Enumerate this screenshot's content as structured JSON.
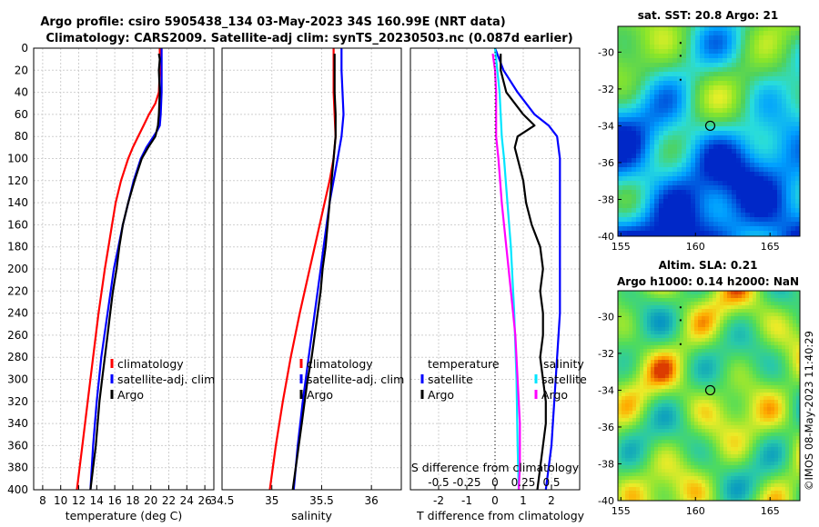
{
  "title_line1": "Argo profile: csiro 5905438_134 03-May-2023 34S 160.99E (NRT data)",
  "title_line2": "Climatology: CARS2009. Satellite-adj clim: synTS_20230503.nc (0.087d earlier)",
  "watermark": "©IMOS 08-May-2023 11:40:29",
  "colors": {
    "climatology": "#ff0000",
    "satellite": "#0000ff",
    "argo": "#000000",
    "sal_sat": "#00e5ff",
    "sal_diff": "#ff00ff"
  },
  "depth_ticks": [
    0,
    20,
    40,
    60,
    80,
    100,
    120,
    140,
    160,
    180,
    200,
    220,
    240,
    260,
    280,
    300,
    320,
    340,
    360,
    380,
    400
  ],
  "chart_data": [
    {
      "id": "temperature",
      "type": "line",
      "xlabel": "temperature (deg C)",
      "xlim": [
        7,
        27
      ],
      "ylim": [
        400,
        0
      ],
      "xticks": [
        8,
        10,
        12,
        14,
        16,
        18,
        20,
        22,
        24,
        26
      ],
      "legend": [
        "climatology",
        "satellite-adj. clim",
        "Argo"
      ],
      "series": [
        {
          "name": "climatology",
          "depth": [
            0,
            10,
            20,
            40,
            50,
            60,
            70,
            80,
            90,
            100,
            120,
            140,
            160,
            180,
            200,
            240,
            280,
            320,
            360,
            400
          ],
          "values": [
            21.0,
            21.0,
            21.0,
            20.9,
            20.5,
            19.8,
            19.2,
            18.6,
            18.0,
            17.5,
            16.7,
            16.1,
            15.7,
            15.3,
            14.9,
            14.2,
            13.6,
            13.0,
            12.4,
            11.8
          ]
        },
        {
          "name": "satellite-adj. clim",
          "depth": [
            0,
            10,
            20,
            40,
            60,
            70,
            75,
            80,
            90,
            100,
            120,
            140,
            160,
            180,
            200,
            240,
            280,
            320,
            360,
            400
          ],
          "values": [
            21.2,
            21.2,
            21.2,
            21.2,
            21.1,
            21.0,
            20.7,
            20.3,
            19.5,
            18.9,
            18.1,
            17.5,
            16.9,
            16.4,
            15.9,
            15.2,
            14.5,
            14.0,
            13.6,
            13.3
          ]
        },
        {
          "name": "Argo",
          "depth": [
            5,
            10,
            20,
            40,
            60,
            70,
            80,
            90,
            100,
            110,
            120,
            140,
            160,
            180,
            200,
            220,
            240,
            260,
            280,
            300,
            320,
            340,
            360,
            380,
            400
          ],
          "values": [
            20.9,
            21.0,
            20.9,
            21.0,
            20.9,
            20.8,
            20.5,
            19.7,
            19.0,
            18.6,
            18.2,
            17.5,
            16.9,
            16.5,
            16.2,
            15.8,
            15.5,
            15.2,
            14.9,
            14.6,
            14.3,
            14.1,
            13.9,
            13.6,
            13.3
          ]
        }
      ]
    },
    {
      "id": "salinity",
      "type": "line",
      "xlabel": "salinity",
      "xlim": [
        34.5,
        36.3
      ],
      "ylim": [
        400,
        0
      ],
      "xticks": [
        34.5,
        35,
        35.5,
        36
      ],
      "legend": [
        "climatology",
        "satellite-adj. clim",
        "Argo"
      ],
      "series": [
        {
          "name": "climatology",
          "depth": [
            0,
            10,
            20,
            40,
            60,
            80,
            100,
            120,
            140,
            160,
            180,
            200,
            240,
            280,
            320,
            360,
            400
          ],
          "values": [
            35.62,
            35.62,
            35.62,
            35.62,
            35.63,
            35.64,
            35.62,
            35.58,
            35.53,
            35.48,
            35.43,
            35.38,
            35.28,
            35.19,
            35.11,
            35.04,
            34.98
          ]
        },
        {
          "name": "satellite-adj. clim",
          "depth": [
            0,
            10,
            20,
            40,
            60,
            80,
            100,
            120,
            140,
            160,
            180,
            200,
            240,
            280,
            320,
            360,
            400
          ],
          "values": [
            35.7,
            35.7,
            35.7,
            35.71,
            35.72,
            35.7,
            35.66,
            35.62,
            35.58,
            35.55,
            35.52,
            35.49,
            35.43,
            35.37,
            35.31,
            35.26,
            35.22
          ]
        },
        {
          "name": "Argo",
          "depth": [
            5,
            20,
            40,
            60,
            80,
            100,
            120,
            140,
            160,
            180,
            200,
            220,
            240,
            260,
            280,
            300,
            320,
            340,
            360,
            380,
            400
          ],
          "values": [
            35.63,
            35.63,
            35.63,
            35.64,
            35.64,
            35.62,
            35.6,
            35.58,
            35.56,
            35.54,
            35.51,
            35.49,
            35.46,
            35.43,
            35.4,
            35.36,
            35.33,
            35.3,
            35.27,
            35.24,
            35.21
          ]
        }
      ]
    },
    {
      "id": "difference",
      "type": "line",
      "xlabel_bottom": "T difference from climatology",
      "xlabel_top": "S difference from climatology",
      "xlim": [
        -3,
        3
      ],
      "s_xlim": [
        -0.75,
        0.75
      ],
      "ylim": [
        400,
        0
      ],
      "xticks": [
        -2,
        -1,
        0,
        1,
        2
      ],
      "s_xticks": [
        -0.5,
        -0.25,
        0,
        0.25,
        0.5
      ],
      "s_xtick_labels": [
        "-0.5",
        "-0.25",
        "0",
        "0.25",
        "0.5"
      ],
      "legend_temperature_title": "temperature",
      "legend_salinity_title": "salinity",
      "legend": [
        "satellite",
        "Argo"
      ],
      "series": [
        {
          "name": "T satellite",
          "axis": "T",
          "depth": [
            0,
            20,
            40,
            60,
            70,
            80,
            100,
            120,
            140,
            160,
            180,
            200,
            240,
            280,
            320,
            360,
            400
          ],
          "values": [
            0.0,
            0.3,
            0.8,
            1.4,
            1.9,
            2.2,
            2.3,
            2.3,
            2.3,
            2.3,
            2.3,
            2.3,
            2.3,
            2.2,
            2.1,
            2.0,
            1.8
          ]
        },
        {
          "name": "T Argo",
          "axis": "T",
          "depth": [
            5,
            20,
            40,
            60,
            70,
            80,
            90,
            100,
            120,
            140,
            160,
            180,
            200,
            220,
            240,
            260,
            280,
            300,
            320,
            340,
            360,
            380,
            400
          ],
          "values": [
            0.2,
            0.2,
            0.4,
            1.0,
            1.4,
            0.8,
            0.7,
            0.8,
            1.0,
            1.1,
            1.3,
            1.6,
            1.7,
            1.6,
            1.7,
            1.7,
            1.6,
            1.7,
            1.8,
            1.8,
            1.7,
            1.6,
            1.5
          ]
        },
        {
          "name": "S satellite",
          "axis": "S",
          "depth": [
            0,
            20,
            40,
            60,
            80,
            100,
            140,
            180,
            240,
            300,
            360,
            400
          ],
          "values": [
            0.0,
            0.02,
            0.04,
            0.05,
            0.06,
            0.08,
            0.11,
            0.14,
            0.17,
            0.19,
            0.2,
            0.21
          ]
        },
        {
          "name": "S Argo",
          "axis": "S",
          "depth": [
            5,
            20,
            40,
            60,
            80,
            100,
            140,
            180,
            220,
            260,
            300,
            340,
            380,
            400
          ],
          "values": [
            -0.02,
            0.0,
            0.01,
            0.01,
            0.01,
            0.03,
            0.06,
            0.1,
            0.14,
            0.18,
            0.2,
            0.22,
            0.22,
            0.21
          ]
        }
      ]
    },
    {
      "id": "sst_map",
      "type": "heatmap",
      "title": "sat. SST: 20.8 Argo: 21",
      "xticks": [
        155,
        160,
        165
      ],
      "yticks": [
        -30,
        -32,
        -34,
        -36,
        -38,
        -40
      ],
      "xlim": [
        154.8,
        167
      ],
      "ylim": [
        -40,
        -28.6
      ],
      "marker": {
        "lon": 160.99,
        "lat": -34
      }
    },
    {
      "id": "sla_map",
      "type": "heatmap",
      "title_line1": "Altim. SLA: 0.21",
      "title_line2": "Argo h1000: 0.14 h2000: NaN",
      "xticks": [
        155,
        160,
        165
      ],
      "yticks": [
        -30,
        -32,
        -34,
        -36,
        -38,
        -40
      ],
      "xlim": [
        154.8,
        167
      ],
      "ylim": [
        -40,
        -28.6
      ],
      "marker": {
        "lon": 160.99,
        "lat": -34
      }
    }
  ]
}
